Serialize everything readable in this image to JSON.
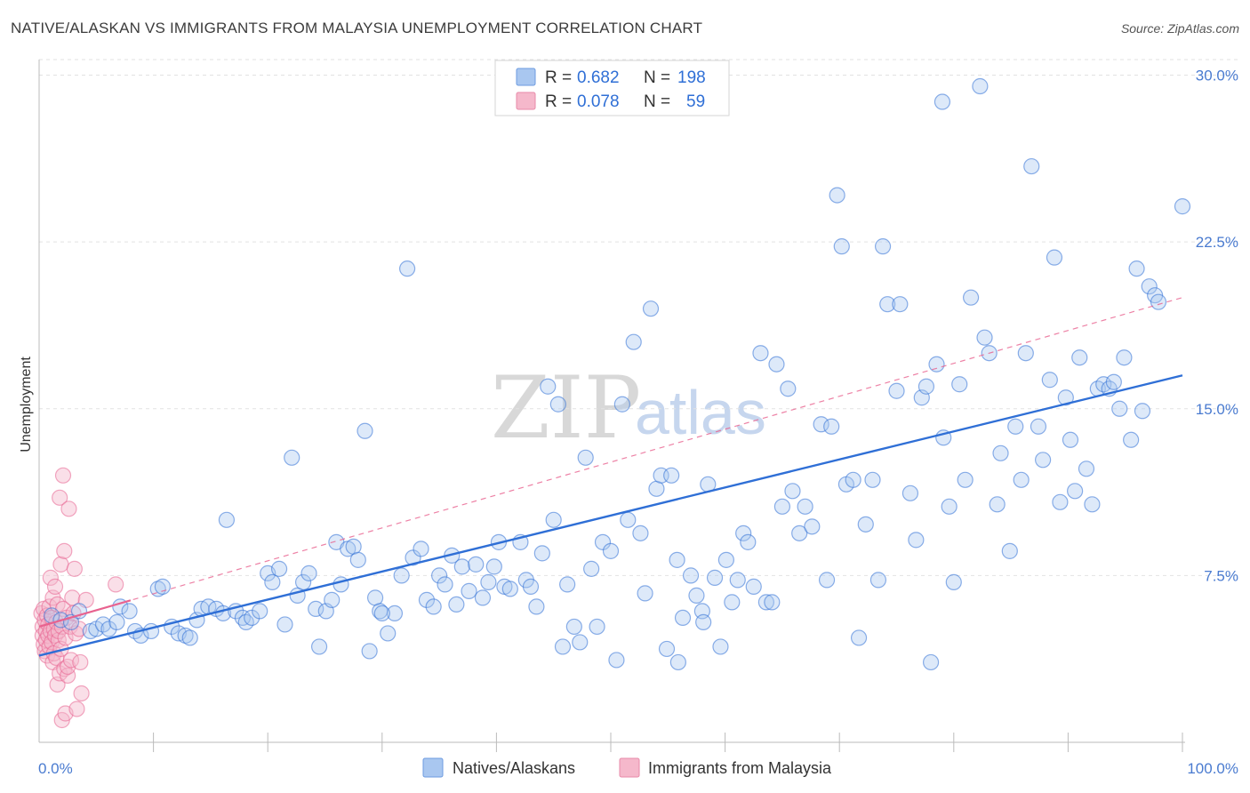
{
  "header": {
    "title": "NATIVE/ALASKAN VS IMMIGRANTS FROM MALAYSIA UNEMPLOYMENT CORRELATION CHART",
    "source": "Source: ZipAtlas.com"
  },
  "watermark": {
    "zip": "ZIP",
    "atlas": "atlas"
  },
  "legend": {
    "rows": [
      {
        "r_label": "R =",
        "r_value": "0.682",
        "n_label": "N =",
        "n_value": "198"
      },
      {
        "r_label": "R =",
        "r_value": "0.078",
        "n_label": "N =",
        "n_value": "59"
      }
    ]
  },
  "bottom_legend": {
    "items": [
      "Natives/Alaskans",
      "Immigrants from Malaysia"
    ]
  },
  "chart_data": {
    "type": "scatter",
    "title": "NATIVE/ALASKAN VS IMMIGRANTS FROM MALAYSIA UNEMPLOYMENT CORRELATION CHART",
    "xlabel": "",
    "ylabel": "Unemployment",
    "xlim": [
      0,
      100
    ],
    "ylim": [
      0,
      30.7
    ],
    "x_tick_labels": [
      "0.0%",
      "100.0%"
    ],
    "y_ticks": [
      7.5,
      15.0,
      22.5,
      30.0
    ],
    "y_tick_labels": [
      "7.5%",
      "15.0%",
      "22.5%",
      "30.0%"
    ],
    "colors": {
      "blue": "#2f6fd6",
      "blue_fill": "#a9c7f0",
      "pink": "#e8628f",
      "pink_fill": "#f5b8cb"
    },
    "series": [
      {
        "name": "Natives/Alaskans",
        "r": 0.682,
        "n": 198,
        "trend": {
          "x": [
            0,
            100
          ],
          "y": [
            3.9,
            16.5
          ],
          "style": "solid"
        },
        "points": [
          [
            1.1,
            5.7
          ],
          [
            1.9,
            5.5
          ],
          [
            2.8,
            5.4
          ],
          [
            3.5,
            5.9
          ],
          [
            4.5,
            5.0
          ],
          [
            5.0,
            5.1
          ],
          [
            5.6,
            5.3
          ],
          [
            6.1,
            5.1
          ],
          [
            6.8,
            5.4
          ],
          [
            7.1,
            6.1
          ],
          [
            7.9,
            5.9
          ],
          [
            8.4,
            5.0
          ],
          [
            8.9,
            4.8
          ],
          [
            9.8,
            5.0
          ],
          [
            10.4,
            6.9
          ],
          [
            10.8,
            7.0
          ],
          [
            11.6,
            5.2
          ],
          [
            12.2,
            4.9
          ],
          [
            12.8,
            4.8
          ],
          [
            13.2,
            4.7
          ],
          [
            13.8,
            5.5
          ],
          [
            14.2,
            6.0
          ],
          [
            14.8,
            6.1
          ],
          [
            15.5,
            6.0
          ],
          [
            16.1,
            5.8
          ],
          [
            16.4,
            10.0
          ],
          [
            17.2,
            5.9
          ],
          [
            17.8,
            5.6
          ],
          [
            18.1,
            5.4
          ],
          [
            18.6,
            5.6
          ],
          [
            19.3,
            5.9
          ],
          [
            20.0,
            7.6
          ],
          [
            20.4,
            7.2
          ],
          [
            21.0,
            7.8
          ],
          [
            21.5,
            5.3
          ],
          [
            22.1,
            12.8
          ],
          [
            22.6,
            6.6
          ],
          [
            23.1,
            7.2
          ],
          [
            23.6,
            7.6
          ],
          [
            24.2,
            6.0
          ],
          [
            24.5,
            4.3
          ],
          [
            25.1,
            5.9
          ],
          [
            25.6,
            6.4
          ],
          [
            26.0,
            9.0
          ],
          [
            26.4,
            7.1
          ],
          [
            27.0,
            8.7
          ],
          [
            27.5,
            8.8
          ],
          [
            27.9,
            8.2
          ],
          [
            28.5,
            14.0
          ],
          [
            28.9,
            4.1
          ],
          [
            29.4,
            6.5
          ],
          [
            29.8,
            5.9
          ],
          [
            30.5,
            4.9
          ],
          [
            31.1,
            5.8
          ],
          [
            31.7,
            7.5
          ],
          [
            32.2,
            21.3
          ],
          [
            32.7,
            8.3
          ],
          [
            33.4,
            8.7
          ],
          [
            33.9,
            6.4
          ],
          [
            34.5,
            6.1
          ],
          [
            35.0,
            7.5
          ],
          [
            35.5,
            7.1
          ],
          [
            36.1,
            8.4
          ],
          [
            36.5,
            6.2
          ],
          [
            37.0,
            7.9
          ],
          [
            37.6,
            6.8
          ],
          [
            38.2,
            8.0
          ],
          [
            38.8,
            6.5
          ],
          [
            39.3,
            7.2
          ],
          [
            39.8,
            7.9
          ],
          [
            40.2,
            9.0
          ],
          [
            40.7,
            7.0
          ],
          [
            41.2,
            6.9
          ],
          [
            42.1,
            9.0
          ],
          [
            42.6,
            7.3
          ],
          [
            43.0,
            7.0
          ],
          [
            43.5,
            6.1
          ],
          [
            44.0,
            8.5
          ],
          [
            44.5,
            16.0
          ],
          [
            45.0,
            10.0
          ],
          [
            45.4,
            15.2
          ],
          [
            45.8,
            4.3
          ],
          [
            46.2,
            7.1
          ],
          [
            46.8,
            5.2
          ],
          [
            47.3,
            4.5
          ],
          [
            47.8,
            12.8
          ],
          [
            48.3,
            7.8
          ],
          [
            48.8,
            5.2
          ],
          [
            49.3,
            9.0
          ],
          [
            50.0,
            8.6
          ],
          [
            50.5,
            3.7
          ],
          [
            51.0,
            15.2
          ],
          [
            51.5,
            10.0
          ],
          [
            52.0,
            18.0
          ],
          [
            52.6,
            9.4
          ],
          [
            53.0,
            6.7
          ],
          [
            53.5,
            19.5
          ],
          [
            54.0,
            11.4
          ],
          [
            54.4,
            12.0
          ],
          [
            54.9,
            4.2
          ],
          [
            55.3,
            12.0
          ],
          [
            55.8,
            8.2
          ],
          [
            56.3,
            5.6
          ],
          [
            57.0,
            7.5
          ],
          [
            57.5,
            6.6
          ],
          [
            58.0,
            5.9
          ],
          [
            58.5,
            11.6
          ],
          [
            59.1,
            7.4
          ],
          [
            59.6,
            4.3
          ],
          [
            60.1,
            8.2
          ],
          [
            60.6,
            6.3
          ],
          [
            61.1,
            7.3
          ],
          [
            61.6,
            9.4
          ],
          [
            62.0,
            9.0
          ],
          [
            62.5,
            7.0
          ],
          [
            63.1,
            17.5
          ],
          [
            63.6,
            6.3
          ],
          [
            64.1,
            6.3
          ],
          [
            64.5,
            17.0
          ],
          [
            65.0,
            10.6
          ],
          [
            65.5,
            15.9
          ],
          [
            65.9,
            11.3
          ],
          [
            66.5,
            9.4
          ],
          [
            67.0,
            10.6
          ],
          [
            67.6,
            9.7
          ],
          [
            68.4,
            14.3
          ],
          [
            68.9,
            7.3
          ],
          [
            69.3,
            14.2
          ],
          [
            69.8,
            24.6
          ],
          [
            70.2,
            22.3
          ],
          [
            70.6,
            11.6
          ],
          [
            71.2,
            11.8
          ],
          [
            71.7,
            4.7
          ],
          [
            72.3,
            9.8
          ],
          [
            72.9,
            11.8
          ],
          [
            73.4,
            7.3
          ],
          [
            73.8,
            22.3
          ],
          [
            74.2,
            19.7
          ],
          [
            75.0,
            15.8
          ],
          [
            75.3,
            19.7
          ],
          [
            76.2,
            11.2
          ],
          [
            76.7,
            9.1
          ],
          [
            77.2,
            15.5
          ],
          [
            77.6,
            16.0
          ],
          [
            78.0,
            3.6
          ],
          [
            78.5,
            17.0
          ],
          [
            79.1,
            13.7
          ],
          [
            79.6,
            10.6
          ],
          [
            80.0,
            7.2
          ],
          [
            80.5,
            16.1
          ],
          [
            81.0,
            11.8
          ],
          [
            81.5,
            20.0
          ],
          [
            82.3,
            29.5
          ],
          [
            82.7,
            18.2
          ],
          [
            83.1,
            17.5
          ],
          [
            83.8,
            10.7
          ],
          [
            84.1,
            13.0
          ],
          [
            84.9,
            8.6
          ],
          [
            85.4,
            14.2
          ],
          [
            85.9,
            11.8
          ],
          [
            86.3,
            17.5
          ],
          [
            86.8,
            25.9
          ],
          [
            87.4,
            14.2
          ],
          [
            87.8,
            12.7
          ],
          [
            88.4,
            16.3
          ],
          [
            88.8,
            21.8
          ],
          [
            89.3,
            10.8
          ],
          [
            89.8,
            15.5
          ],
          [
            90.2,
            13.6
          ],
          [
            90.6,
            11.3
          ],
          [
            91.0,
            17.3
          ],
          [
            91.6,
            12.3
          ],
          [
            92.1,
            10.7
          ],
          [
            92.6,
            15.9
          ],
          [
            93.1,
            16.1
          ],
          [
            93.6,
            15.9
          ],
          [
            94.0,
            16.2
          ],
          [
            94.5,
            15.0
          ],
          [
            94.9,
            17.3
          ],
          [
            95.5,
            13.6
          ],
          [
            96.0,
            21.3
          ],
          [
            96.5,
            14.9
          ],
          [
            97.1,
            20.5
          ],
          [
            97.6,
            20.1
          ],
          [
            97.9,
            19.8
          ],
          [
            100.0,
            24.1
          ],
          [
            79.0,
            28.8
          ],
          [
            55.9,
            3.6
          ],
          [
            58.1,
            5.4
          ],
          [
            30.0,
            5.8
          ]
        ]
      },
      {
        "name": "Immigrants from Malaysia",
        "r": 0.078,
        "n": 59,
        "trend": {
          "x": [
            0,
            100
          ],
          "y": [
            5.2,
            20.0
          ],
          "style": "dashed"
        },
        "points": [
          [
            0.2,
            5.8
          ],
          [
            0.3,
            5.2
          ],
          [
            0.3,
            4.8
          ],
          [
            0.4,
            4.4
          ],
          [
            0.4,
            6.0
          ],
          [
            0.5,
            5.5
          ],
          [
            0.5,
            4.1
          ],
          [
            0.6,
            5.0
          ],
          [
            0.6,
            4.6
          ],
          [
            0.7,
            5.7
          ],
          [
            0.7,
            3.9
          ],
          [
            0.8,
            5.3
          ],
          [
            0.8,
            4.8
          ],
          [
            0.9,
            6.1
          ],
          [
            0.9,
            4.3
          ],
          [
            1.0,
            5.0
          ],
          [
            1.0,
            7.4
          ],
          [
            1.1,
            4.5
          ],
          [
            1.1,
            5.6
          ],
          [
            1.2,
            3.6
          ],
          [
            1.2,
            6.5
          ],
          [
            1.3,
            5.1
          ],
          [
            1.3,
            4.0
          ],
          [
            1.4,
            4.8
          ],
          [
            1.4,
            7.0
          ],
          [
            1.5,
            5.4
          ],
          [
            1.5,
            3.8
          ],
          [
            1.6,
            6.2
          ],
          [
            1.6,
            2.6
          ],
          [
            1.7,
            4.6
          ],
          [
            1.7,
            5.0
          ],
          [
            1.8,
            3.1
          ],
          [
            1.8,
            11.0
          ],
          [
            1.9,
            8.0
          ],
          [
            1.9,
            4.2
          ],
          [
            2.0,
            5.2
          ],
          [
            2.0,
            1.0
          ],
          [
            2.1,
            12.0
          ],
          [
            2.1,
            6.0
          ],
          [
            2.2,
            8.6
          ],
          [
            2.2,
            3.3
          ],
          [
            2.3,
            4.7
          ],
          [
            2.3,
            1.3
          ],
          [
            2.4,
            5.6
          ],
          [
            2.5,
            3.0
          ],
          [
            2.5,
            3.4
          ],
          [
            2.6,
            10.5
          ],
          [
            2.7,
            5.2
          ],
          [
            2.8,
            3.7
          ],
          [
            2.9,
            6.5
          ],
          [
            3.0,
            5.8
          ],
          [
            3.1,
            7.8
          ],
          [
            3.2,
            4.9
          ],
          [
            3.3,
            1.5
          ],
          [
            3.5,
            5.1
          ],
          [
            3.6,
            3.6
          ],
          [
            3.7,
            2.2
          ],
          [
            4.1,
            6.4
          ],
          [
            6.7,
            7.1
          ]
        ]
      }
    ]
  }
}
